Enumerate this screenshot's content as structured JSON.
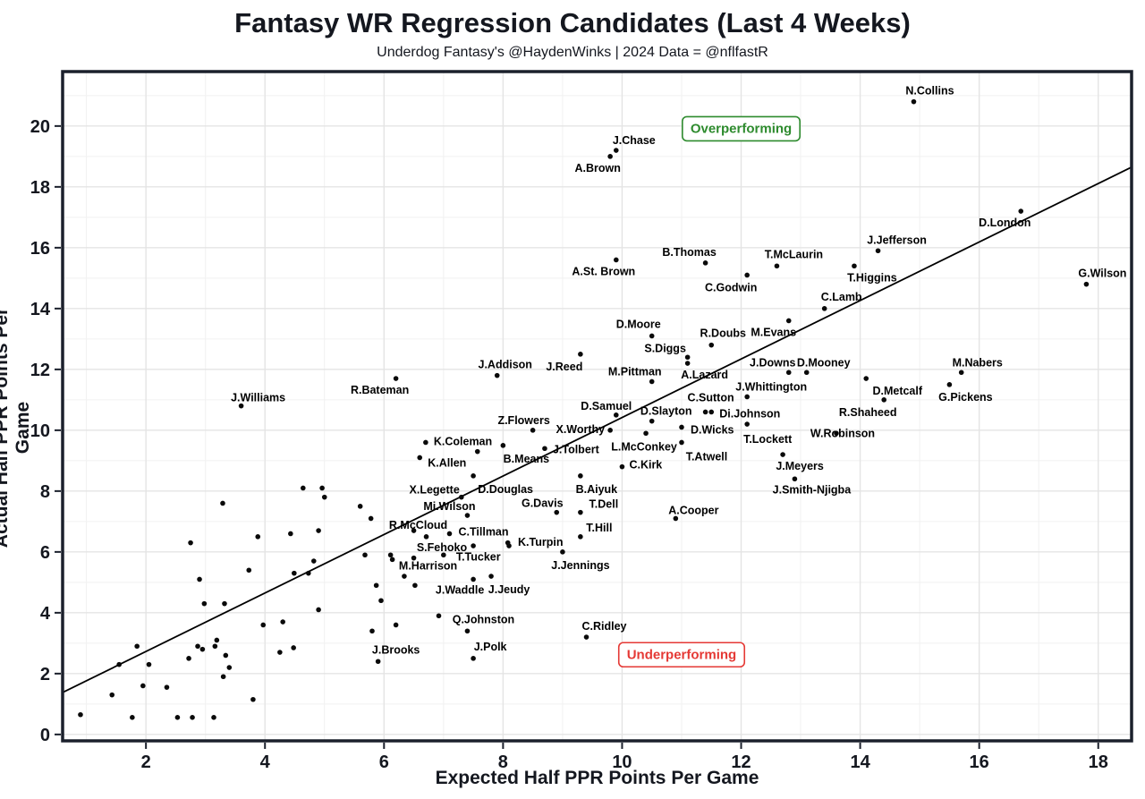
{
  "header": {
    "title": "Fantasy WR Regression Candidates (Last 4 Weeks)",
    "subtitle": "Underdog Fantasy's @HaydenWinks | 2024 Data = @nflfastR"
  },
  "chart_data": {
    "type": "scatter",
    "title": "Fantasy WR Regression Candidates (Last 4 Weeks)",
    "subtitle": "Underdog Fantasy's @HaydenWinks | 2024 Data = @nflfastR",
    "xlabel": "Expected Half PPR Points Per Game",
    "ylabel": "Actual Half PPR Points Per Game",
    "xlim": [
      0.6,
      18.56
    ],
    "ylim": [
      -0.21,
      21.79
    ],
    "x_ticks": [
      2,
      4,
      6,
      8,
      10,
      12,
      14,
      16,
      18
    ],
    "y_ticks": [
      0,
      2,
      4,
      6,
      8,
      10,
      12,
      14,
      16,
      18,
      20
    ],
    "x_minor_ticks": [
      1,
      3,
      5,
      7,
      9,
      11,
      13,
      15,
      17
    ],
    "y_minor_ticks": [
      1,
      3,
      5,
      7,
      9,
      11,
      13,
      15,
      17,
      19,
      21
    ],
    "grid": true,
    "legend_position": "none",
    "point_color": "#0a0a0a",
    "grid_major_color": "#e4e4e4",
    "grid_minor_color": "#f1f1f1",
    "border_color": "#1b202c",
    "tick_label_color": "#14171f",
    "trend_line": {
      "x1": 0.6,
      "y1": 1.38,
      "x2": 18.56,
      "y2": 18.65,
      "color": "#000000"
    },
    "annotations": [
      {
        "text": "Overperforming",
        "x": 12.0,
        "y": 19.94,
        "color": "#2e8b2e"
      },
      {
        "text": "Underperforming",
        "x": 11.0,
        "y": 2.65,
        "color": "#e53935"
      }
    ],
    "players_schema": [
      "name",
      "x_expected",
      "y_actual",
      "label_dx_px",
      "label_dy_px",
      "anchor(m=middle,s=start,e=end)"
    ],
    "players": [
      [
        "N.Collins",
        14.9,
        20.8,
        18,
        -8,
        "m"
      ],
      [
        "J.Chase",
        9.9,
        19.2,
        20,
        -7,
        "m"
      ],
      [
        "A.Brown",
        9.8,
        19.0,
        -14,
        17,
        "m"
      ],
      [
        "D.London",
        16.7,
        17.2,
        -18,
        17,
        "m"
      ],
      [
        "J.Jefferson",
        14.3,
        15.9,
        21,
        -8,
        "m"
      ],
      [
        "G.Wilson",
        17.8,
        14.8,
        18,
        -8,
        "m"
      ],
      [
        "T.Higgins",
        13.9,
        15.4,
        20,
        17,
        "m"
      ],
      [
        "C.Lamb",
        13.4,
        14.0,
        19,
        -9,
        "m"
      ],
      [
        "B.Thomas",
        11.4,
        15.5,
        -18,
        -8,
        "m"
      ],
      [
        "T.McLaurin",
        12.6,
        15.4,
        19,
        -9,
        "m"
      ],
      [
        "A.St. Brown",
        9.9,
        15.6,
        -14,
        17,
        "m"
      ],
      [
        "C.Godwin",
        12.1,
        15.1,
        -18,
        18,
        "m"
      ],
      [
        "D.Moore",
        10.5,
        13.1,
        -15,
        -9,
        "m"
      ],
      [
        "M.Evans",
        12.8,
        13.6,
        -17,
        17,
        "m"
      ],
      [
        "R.Doubs",
        11.5,
        12.8,
        13,
        -9,
        "m"
      ],
      [
        "S.Diggs",
        11.1,
        12.4,
        -25,
        -6,
        "m"
      ],
      [
        "A.Lazard",
        11.1,
        12.2,
        19,
        17,
        "m"
      ],
      [
        "J.Addison",
        7.9,
        11.8,
        9,
        -8,
        "m"
      ],
      [
        "J.Reed",
        9.3,
        12.5,
        -18,
        18,
        "m"
      ],
      [
        "M.Pittman",
        10.5,
        11.6,
        -19,
        -7,
        "m"
      ],
      [
        "J.Downs",
        12.8,
        11.9,
        -18,
        -7,
        "m"
      ],
      [
        "D.Mooney",
        13.1,
        11.9,
        19,
        -7,
        "m"
      ],
      [
        "M.Nabers",
        15.7,
        11.9,
        18,
        -7,
        "m"
      ],
      [
        "J.Whittington",
        12.1,
        11.1,
        27,
        -7,
        "m"
      ],
      [
        "D.Metcalf",
        14.1,
        11.7,
        35,
        18,
        "m"
      ],
      [
        "G.Pickens",
        15.5,
        11.5,
        18,
        18,
        "m"
      ],
      [
        "R.Bateman",
        6.2,
        11.7,
        -18,
        17,
        "m"
      ],
      [
        "J.Williams",
        3.6,
        10.8,
        19,
        -5,
        "m"
      ],
      [
        "C.Sutton",
        11.4,
        10.6,
        6,
        -12,
        "m"
      ],
      [
        "D.Slayton",
        10.5,
        10.3,
        16,
        -7,
        "m"
      ],
      [
        "Di.Johnson",
        11.5,
        10.6,
        9,
        6,
        "s"
      ],
      [
        "R.Shaheed",
        14.4,
        11.0,
        -18,
        18,
        "m"
      ],
      [
        "D.Samuel",
        9.9,
        10.5,
        -11,
        -6,
        "m"
      ],
      [
        "X.Worthy",
        9.8,
        10.0,
        -6,
        3,
        "e"
      ],
      [
        "Z.Flowers",
        8.5,
        10.0,
        -10,
        -7,
        "m"
      ],
      [
        "W.Robinson",
        13.6,
        9.9,
        7,
        4,
        "m"
      ],
      [
        "K.Coleman",
        6.7,
        9.6,
        9,
        3,
        "s"
      ],
      [
        "T.Lockett",
        12.1,
        10.2,
        23,
        21,
        "m"
      ],
      [
        "D.Wicks",
        11.0,
        10.1,
        10,
        7,
        "s"
      ],
      [
        "L.McConkey",
        10.4,
        9.9,
        -2,
        19,
        "m"
      ],
      [
        "B.Means",
        8.0,
        9.5,
        26,
        19,
        "m"
      ],
      [
        "J.Tolbert",
        8.7,
        9.4,
        9,
        5,
        "s"
      ],
      [
        "T.Atwell",
        11.0,
        9.6,
        28,
        20,
        "m"
      ],
      [
        "K.Allen",
        6.6,
        9.1,
        9,
        10,
        "s"
      ],
      [
        "C.Kirk",
        10.0,
        8.8,
        8,
        2,
        "s"
      ],
      [
        "J.Meyers",
        12.7,
        9.2,
        19,
        17,
        "m"
      ],
      [
        "X.Legette",
        7.3,
        7.8,
        -2,
        -4,
        "e"
      ],
      [
        "D.Douglas",
        7.5,
        8.5,
        36,
        19,
        "m"
      ],
      [
        "B.Aiyuk",
        9.3,
        8.5,
        18,
        19,
        "m"
      ],
      [
        "J.Smith-Njigba",
        12.9,
        8.4,
        19,
        16,
        "m"
      ],
      [
        "Mi.Wilson",
        7.4,
        7.2,
        -20,
        -6,
        "m"
      ],
      [
        "G.Davis",
        8.9,
        7.3,
        -16,
        -6,
        "m"
      ],
      [
        "T.Dell",
        9.3,
        7.3,
        26,
        -5,
        "m"
      ],
      [
        "A.Cooper",
        10.9,
        7.1,
        20,
        -5,
        "m"
      ],
      [
        "R.McCloud",
        6.5,
        6.7,
        5,
        -2,
        "m"
      ],
      [
        "C.Tillman",
        7.1,
        6.6,
        10,
        2,
        "s"
      ],
      [
        "T.Hill",
        9.3,
        6.5,
        21,
        -6,
        "m"
      ],
      [
        "K.Turpin",
        8.1,
        6.2,
        10,
        0,
        "s"
      ],
      [
        "S.Fehoko",
        7.5,
        6.2,
        -7,
        6,
        "e"
      ],
      [
        "T.Tucker",
        7.0,
        5.9,
        14,
        6,
        "s"
      ],
      [
        "M.Harrison",
        6.5,
        5.8,
        16,
        13,
        "m"
      ],
      [
        "J.Jennings",
        9.0,
        6.0,
        20,
        19,
        "m"
      ],
      [
        "J.Waddle",
        7.5,
        5.1,
        -15,
        16,
        "m"
      ],
      [
        "J.Jeudy",
        7.8,
        5.2,
        20,
        19,
        "m"
      ],
      [
        "Q.Johnston",
        7.4,
        3.4,
        18,
        -9,
        "m"
      ],
      [
        "C.Ridley",
        9.4,
        3.2,
        20,
        -8,
        "m"
      ],
      [
        "J.Brooks",
        5.9,
        2.4,
        20,
        -9,
        "m"
      ],
      [
        "J.Polk",
        7.5,
        2.5,
        19,
        -9,
        "m"
      ]
    ],
    "other_points": [
      [
        4.64,
        8.1
      ],
      [
        4.96,
        8.1
      ],
      [
        5.0,
        7.8
      ],
      [
        5.6,
        7.5
      ],
      [
        3.29,
        7.6
      ],
      [
        3.88,
        6.5
      ],
      [
        4.43,
        6.6
      ],
      [
        4.9,
        6.7
      ],
      [
        2.75,
        6.3
      ],
      [
        5.68,
        5.9
      ],
      [
        4.82,
        5.7
      ],
      [
        3.73,
        5.4
      ],
      [
        4.49,
        5.3
      ],
      [
        4.73,
        5.3
      ],
      [
        2.9,
        5.1
      ],
      [
        2.98,
        4.3
      ],
      [
        3.32,
        4.3
      ],
      [
        4.9,
        4.1
      ],
      [
        5.78,
        7.1
      ],
      [
        6.71,
        6.5
      ],
      [
        8.08,
        6.3
      ],
      [
        6.11,
        5.9
      ],
      [
        6.14,
        5.75
      ],
      [
        7.57,
        9.3
      ],
      [
        6.34,
        5.2
      ],
      [
        5.87,
        4.9
      ],
      [
        6.52,
        4.9
      ],
      [
        5.95,
        4.4
      ],
      [
        6.92,
        3.9
      ],
      [
        6.2,
        3.6
      ],
      [
        3.97,
        3.6
      ],
      [
        4.3,
        3.7
      ],
      [
        5.8,
        3.4
      ],
      [
        1.85,
        2.9
      ],
      [
        2.87,
        2.9
      ],
      [
        3.19,
        3.1
      ],
      [
        2.95,
        2.8
      ],
      [
        3.16,
        2.9
      ],
      [
        2.72,
        2.5
      ],
      [
        3.34,
        2.6
      ],
      [
        3.4,
        2.2
      ],
      [
        4.25,
        2.7
      ],
      [
        4.48,
        2.85
      ],
      [
        1.55,
        2.3
      ],
      [
        2.05,
        2.3
      ],
      [
        1.43,
        1.3
      ],
      [
        3.8,
        1.15
      ],
      [
        1.95,
        1.6
      ],
      [
        2.35,
        1.55
      ],
      [
        3.3,
        1.9
      ],
      [
        0.9,
        0.65
      ],
      [
        1.77,
        0.56
      ],
      [
        2.53,
        0.56
      ],
      [
        2.78,
        0.56
      ],
      [
        3.14,
        0.56
      ]
    ]
  }
}
